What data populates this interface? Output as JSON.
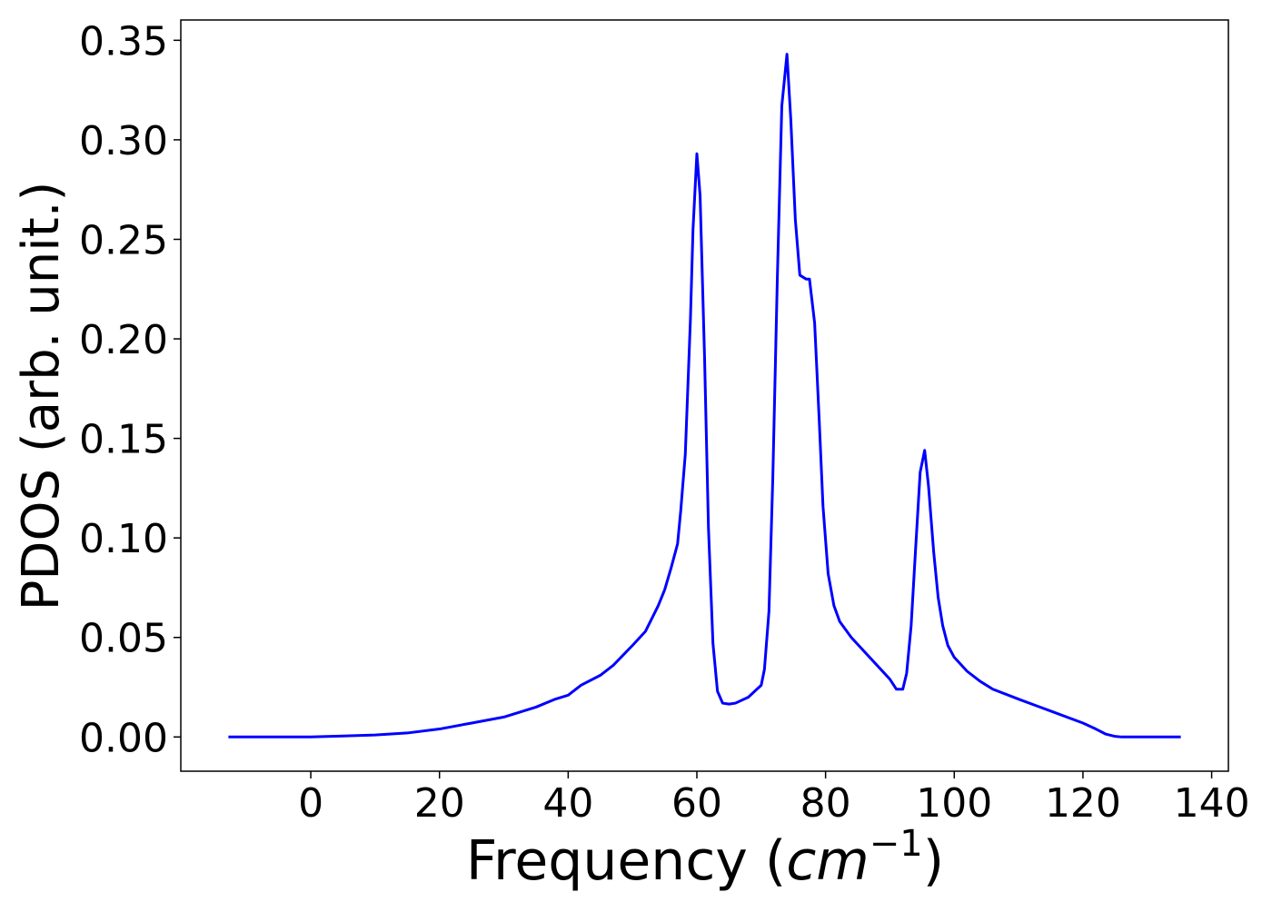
{
  "chart_data": {
    "type": "line",
    "xlabel": [
      "Frequency (",
      "cm",
      "−1",
      ")"
    ],
    "ylabel": "PDOS (arb. unit.)",
    "xlim": [
      -20.2,
      142.6
    ],
    "ylim": [
      -0.0172,
      0.3602
    ],
    "xticks": [
      0,
      20,
      40,
      60,
      80,
      100,
      120,
      140
    ],
    "yticks": [
      {
        "value": 0,
        "label": "0.00"
      },
      0.05,
      {
        "value": 0.1,
        "label": "0.10"
      },
      0.15,
      {
        "value": 0.2,
        "label": "0.20"
      },
      0.25,
      {
        "value": 0.3,
        "label": "0.30"
      },
      0.35
    ],
    "x": [
      -12.8,
      0,
      5,
      10,
      15,
      20,
      25,
      30,
      35,
      38,
      40,
      42,
      45,
      47,
      50,
      52,
      54,
      55,
      56,
      57,
      57.5,
      58.2,
      59,
      59.4,
      60,
      60.5,
      61.2,
      61.8,
      62.5,
      63.2,
      64,
      65,
      66,
      68,
      69,
      70,
      70.5,
      71.2,
      71.8,
      72.5,
      73.2,
      74,
      74.6,
      75.3,
      76,
      77,
      77.5,
      78.3,
      79,
      79.6,
      80.4,
      81.3,
      82.2,
      84,
      86,
      88,
      90,
      91,
      92,
      92.6,
      93.3,
      94,
      94.7,
      95.4,
      96,
      96.8,
      97.5,
      98.2,
      99,
      100,
      102,
      104,
      106,
      110,
      115,
      120,
      122,
      123.5,
      125,
      126,
      135.2
    ],
    "series": [
      {
        "color": "#0000ff",
        "values": [
          0,
          0,
          0.0005,
          0.001,
          0.002,
          0.004,
          0.007,
          0.01,
          0.015,
          0.019,
          0.021,
          0.026,
          0.031,
          0.036,
          0.046,
          0.053,
          0.066,
          0.074,
          0.085,
          0.097,
          0.114,
          0.142,
          0.21,
          0.255,
          0.293,
          0.272,
          0.19,
          0.105,
          0.047,
          0.023,
          0.017,
          0.0165,
          0.017,
          0.02,
          0.023,
          0.026,
          0.034,
          0.063,
          0.13,
          0.23,
          0.317,
          0.343,
          0.31,
          0.26,
          0.232,
          0.23,
          0.23,
          0.208,
          0.16,
          0.116,
          0.082,
          0.066,
          0.058,
          0.05,
          0.043,
          0.036,
          0.029,
          0.024,
          0.024,
          0.032,
          0.056,
          0.095,
          0.133,
          0.144,
          0.126,
          0.093,
          0.07,
          0.056,
          0.046,
          0.04,
          0.033,
          0.028,
          0.024,
          0.019,
          0.013,
          0.007,
          0.004,
          0.0015,
          0.0003,
          0,
          0
        ]
      }
    ]
  }
}
